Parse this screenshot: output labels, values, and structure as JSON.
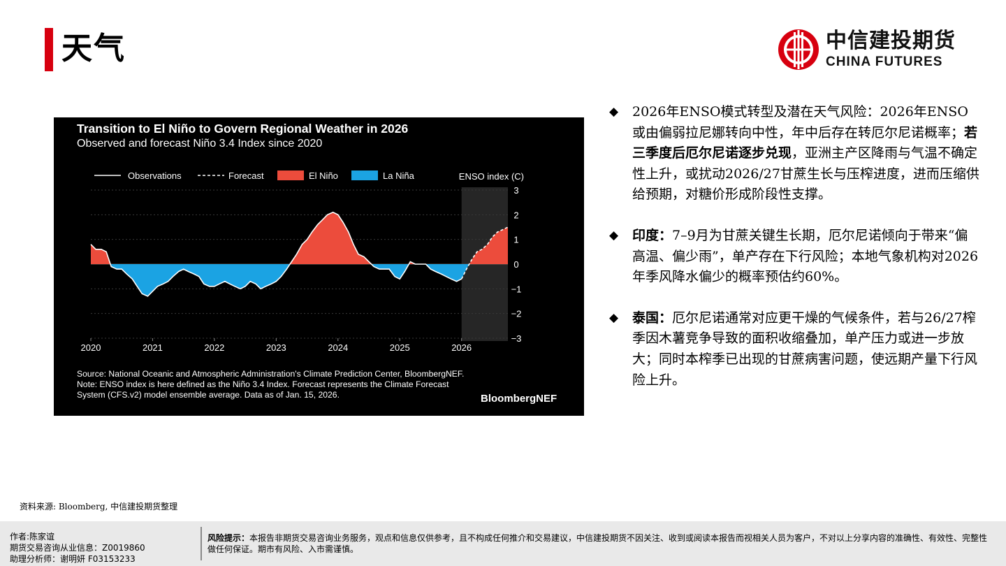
{
  "header": {
    "title": "天气",
    "logo_cn": "中信建投期货",
    "logo_en": "CHINA FUTURES",
    "accent_color": "#d7000f"
  },
  "chart_data": {
    "type": "line",
    "title": "Transition to El Niño to Govern Regional Weather in 2026",
    "subtitle": "Observed and forecast Niño 3.4 Index since 2020",
    "ylabel": "ENSO index (C)",
    "xlabel": "",
    "ylim": [
      -3,
      3
    ],
    "xlim": [
      2020,
      2026.75
    ],
    "x_ticks": [
      "2020",
      "2021",
      "2022",
      "2023",
      "2024",
      "2025",
      "2026"
    ],
    "y_ticks": [
      "3",
      "2",
      "1",
      "0",
      "−1",
      "−2",
      "−3"
    ],
    "legend": [
      "Observations",
      "Forecast",
      "El Niño",
      "La Niña"
    ],
    "legend_position": "top",
    "grid": true,
    "forecast_region_start": 2026.0,
    "colors": {
      "el_nino": "#ec4c3c",
      "la_nina": "#1ba3e3",
      "line": "#ffffff",
      "background": "#000000"
    },
    "series": [
      {
        "name": "Observations",
        "style": "solid",
        "points": [
          [
            2020.0,
            0.8
          ],
          [
            2020.08,
            0.6
          ],
          [
            2020.17,
            0.6
          ],
          [
            2020.25,
            0.5
          ],
          [
            2020.33,
            -0.1
          ],
          [
            2020.42,
            -0.2
          ],
          [
            2020.5,
            -0.2
          ],
          [
            2020.58,
            -0.4
          ],
          [
            2020.67,
            -0.6
          ],
          [
            2020.75,
            -0.9
          ],
          [
            2020.83,
            -1.2
          ],
          [
            2020.92,
            -1.3
          ],
          [
            2021.0,
            -1.1
          ],
          [
            2021.08,
            -0.9
          ],
          [
            2021.17,
            -0.8
          ],
          [
            2021.25,
            -0.7
          ],
          [
            2021.33,
            -0.5
          ],
          [
            2021.42,
            -0.3
          ],
          [
            2021.5,
            -0.2
          ],
          [
            2021.58,
            -0.3
          ],
          [
            2021.67,
            -0.4
          ],
          [
            2021.75,
            -0.5
          ],
          [
            2021.83,
            -0.8
          ],
          [
            2021.92,
            -0.9
          ],
          [
            2022.0,
            -0.9
          ],
          [
            2022.08,
            -0.8
          ],
          [
            2022.17,
            -0.7
          ],
          [
            2022.25,
            -0.8
          ],
          [
            2022.33,
            -0.9
          ],
          [
            2022.42,
            -1.0
          ],
          [
            2022.5,
            -0.9
          ],
          [
            2022.58,
            -0.7
          ],
          [
            2022.67,
            -0.8
          ],
          [
            2022.75,
            -1.0
          ],
          [
            2022.83,
            -0.9
          ],
          [
            2022.92,
            -0.8
          ],
          [
            2023.0,
            -0.7
          ],
          [
            2023.08,
            -0.5
          ],
          [
            2023.17,
            -0.2
          ],
          [
            2023.25,
            0.1
          ],
          [
            2023.33,
            0.4
          ],
          [
            2023.42,
            0.8
          ],
          [
            2023.5,
            1.0
          ],
          [
            2023.58,
            1.3
          ],
          [
            2023.67,
            1.6
          ],
          [
            2023.75,
            1.8
          ],
          [
            2023.83,
            2.0
          ],
          [
            2023.92,
            2.1
          ],
          [
            2024.0,
            2.0
          ],
          [
            2024.08,
            1.7
          ],
          [
            2024.17,
            1.3
          ],
          [
            2024.25,
            0.8
          ],
          [
            2024.33,
            0.4
          ],
          [
            2024.42,
            0.3
          ],
          [
            2024.5,
            0.1
          ],
          [
            2024.58,
            -0.1
          ],
          [
            2024.67,
            -0.2
          ],
          [
            2024.75,
            -0.2
          ],
          [
            2024.83,
            -0.2
          ],
          [
            2024.92,
            -0.5
          ],
          [
            2025.0,
            -0.6
          ],
          [
            2025.08,
            -0.3
          ],
          [
            2025.17,
            0.1
          ],
          [
            2025.25,
            0.0
          ],
          [
            2025.33,
            0.0
          ],
          [
            2025.42,
            0.0
          ],
          [
            2025.5,
            -0.2
          ],
          [
            2025.58,
            -0.3
          ],
          [
            2025.67,
            -0.4
          ],
          [
            2025.75,
            -0.5
          ],
          [
            2025.83,
            -0.6
          ],
          [
            2025.92,
            -0.7
          ],
          [
            2026.0,
            -0.6
          ]
        ]
      },
      {
        "name": "Forecast",
        "style": "dashed",
        "points": [
          [
            2026.0,
            -0.6
          ],
          [
            2026.08,
            -0.2
          ],
          [
            2026.17,
            0.2
          ],
          [
            2026.25,
            0.5
          ],
          [
            2026.33,
            0.6
          ],
          [
            2026.42,
            0.8
          ],
          [
            2026.5,
            1.1
          ],
          [
            2026.58,
            1.3
          ],
          [
            2026.67,
            1.4
          ],
          [
            2026.75,
            1.5
          ]
        ]
      }
    ],
    "source": "Source: National Oceanic and Atmospheric Administration's Climate Prediction Center, BloombergNEF.",
    "note": "Note: ENSO index is here defined as the Niño 3.4 Index. Forecast represents the Climate Forecast System (CFS.v2) model ensemble average. Data as of Jan. 15, 2026.",
    "brand": "BloombergNEF"
  },
  "bullets": [
    {
      "head": "2026年ENSO模式转型及潜在天气风险：",
      "text1": "2026年ENSO或由偏弱拉尼娜转向中性，年中后存在转厄尔尼诺概率；",
      "bold": "若三季度后厄尔尼诺逐步兑现",
      "text2": "，亚洲主产区降雨与气温不确定性上升，或扰动2026/27甘蔗生长与压榨进度，进而压缩供给预期，对糖价形成阶段性支撑。"
    },
    {
      "head": "印度：",
      "text1": "7–9月为甘蔗关键生长期，厄尔尼诺倾向于带来“偏高温、偏少雨”，单产存在下行风险；本地气象机构对2026年季风降水偏少的概率预估约60%。"
    },
    {
      "head": "泰国：",
      "text1": "厄尔尼诺通常对应更干燥的气候条件，若与26/27榨季因木薯竞争导致的面积收缩叠加，单产压力或进一步放大；同时本榨季已出现的甘蔗病害问题，使远期产量下行风险上升。"
    }
  ],
  "source_note": "资料来源: Bloomberg, 中信建投期货整理",
  "footer": {
    "author": "作者:陈家谊",
    "license": "期货交易咨询从业信息：Z0019860",
    "assistant": "助理分析师：谢明妍 F03153233",
    "risk_label": "风险提示：",
    "risk_text": "本报告非期货交易咨询业务服务，观点和信息仅供参考，且不构成任何推介和交易建议，中信建投期货不因关注、收到或阅读本报告而视相关人员为客户，不对以上分享内容的准确性、有效性、完整性做任何保证。期市有风险、入市需谨慎。"
  }
}
